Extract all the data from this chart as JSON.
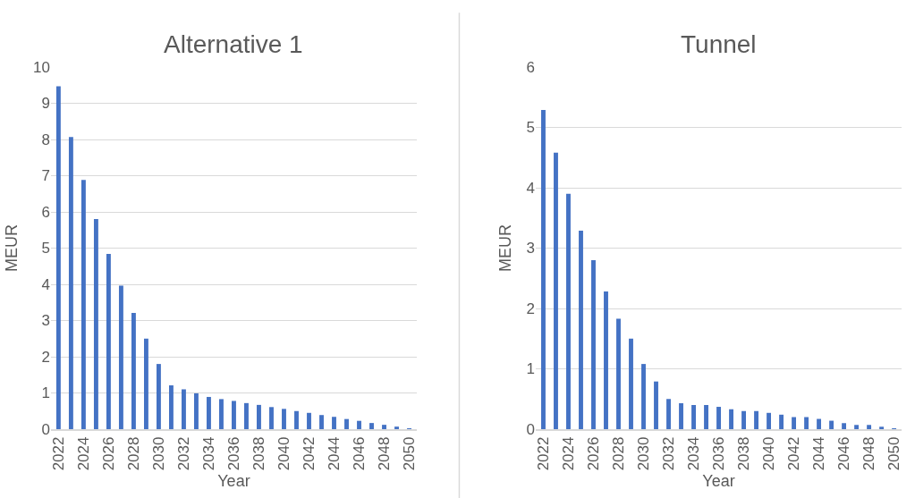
{
  "chart_data": [
    {
      "type": "bar",
      "title": "Alternative 1",
      "xlabel": "Year",
      "ylabel": "MEUR",
      "categories": [
        "2022",
        null,
        "2024",
        null,
        "2026",
        null,
        "2028",
        null,
        "2030",
        null,
        "2032",
        null,
        "2034",
        null,
        "2036",
        null,
        "2038",
        null,
        "2040",
        null,
        "2042",
        null,
        "2044",
        null,
        "2046",
        null,
        "2048",
        null,
        "2050"
      ],
      "series": [
        {
          "color": "#4472c4",
          "values": [
            9.47,
            8.07,
            6.88,
            5.8,
            4.84,
            3.96,
            3.21,
            2.5,
            1.8,
            1.21,
            1.1,
            0.99,
            0.89,
            0.83,
            0.78,
            0.72,
            0.67,
            0.61,
            0.56,
            0.5,
            0.45,
            0.39,
            0.34,
            0.28,
            0.23,
            0.17,
            0.12,
            0.07,
            0.01
          ]
        }
      ],
      "ylim": [
        0,
        10
      ],
      "yticks": [
        0,
        1,
        2,
        3,
        4,
        5,
        6,
        7,
        8,
        9,
        10
      ],
      "grid": "y"
    },
    {
      "type": "bar",
      "title": "Tunnel",
      "xlabel": "Year",
      "ylabel": "MEUR",
      "categories": [
        "2022",
        null,
        "2024",
        null,
        "2026",
        null,
        "2028",
        null,
        "2030",
        null,
        "2032",
        null,
        "2034",
        null,
        "2036",
        null,
        "2038",
        null,
        "2040",
        null,
        "2042",
        null,
        "2044",
        null,
        "2046",
        null,
        "2048",
        null,
        "2050"
      ],
      "series": [
        {
          "color": "#4472c4",
          "values": [
            5.29,
            4.58,
            3.9,
            3.29,
            2.8,
            2.28,
            1.83,
            1.5,
            1.08,
            0.79,
            0.5,
            0.43,
            0.4,
            0.4,
            0.37,
            0.33,
            0.3,
            0.3,
            0.27,
            0.24,
            0.2,
            0.2,
            0.17,
            0.14,
            0.1,
            0.07,
            0.07,
            0.04,
            0.01
          ]
        }
      ],
      "ylim": [
        0,
        6
      ],
      "yticks": [
        0,
        1,
        2,
        3,
        4,
        5,
        6
      ],
      "grid": "y"
    }
  ]
}
